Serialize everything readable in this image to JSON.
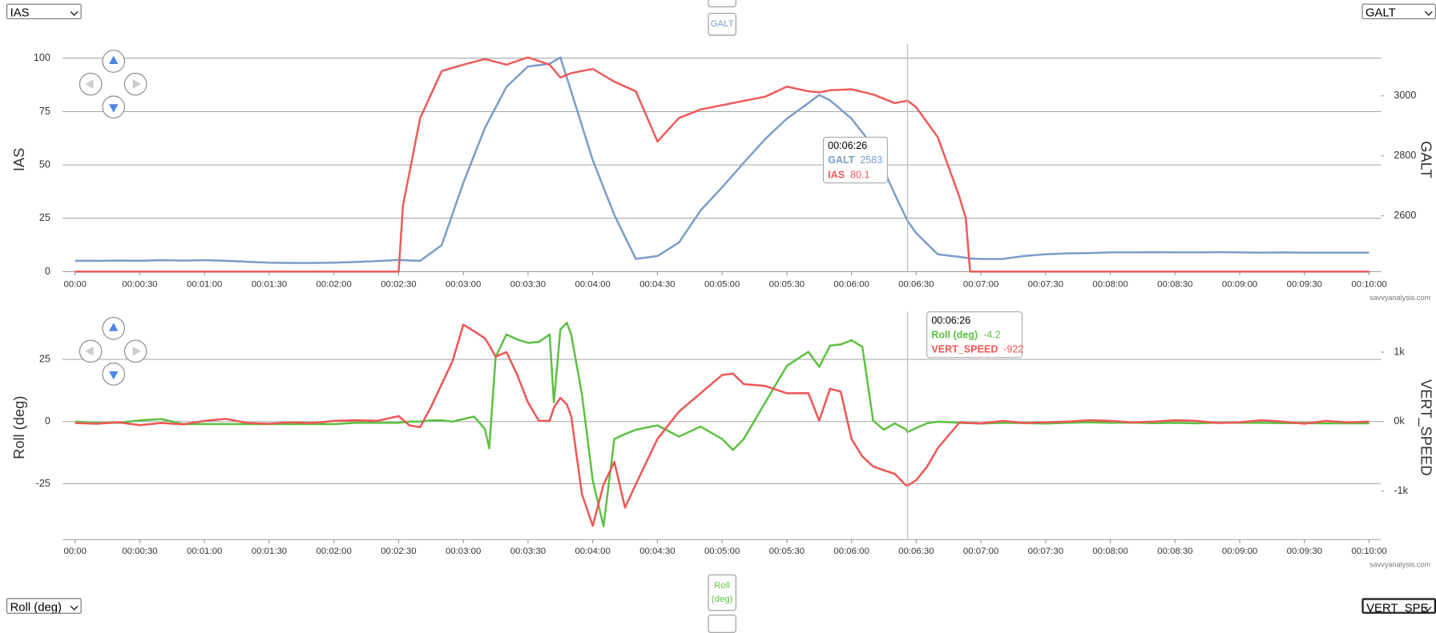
{
  "ui": {
    "select_top_left": "IAS",
    "select_top_right": "GALT",
    "select_bottom_left": "Roll (deg)",
    "select_bottom_right": "VERT_SPE",
    "button_top": "GALT",
    "button_bottom": "Roll (deg)"
  },
  "chart_data": [
    {
      "type": "line",
      "ylabel": "IAS",
      "y2label": "GALT",
      "credit": "savvyanalysis.com",
      "grid": true,
      "xlim": [
        0,
        600
      ],
      "ylim": [
        0,
        105
      ],
      "yticks": [
        0,
        25,
        50,
        75,
        100
      ],
      "y2lim": [
        2414,
        3161
      ],
      "y2ticks": [
        2600,
        2800,
        3000
      ],
      "xticks": [
        {
          "value": 0,
          "label": "00:00"
        },
        {
          "value": 30,
          "label": "00:00:30"
        },
        {
          "value": 60,
          "label": "00:01:00"
        },
        {
          "value": 90,
          "label": "00:01:30"
        },
        {
          "value": 120,
          "label": "00:02:00"
        },
        {
          "value": 150,
          "label": "00:02:30"
        },
        {
          "value": 180,
          "label": "00:03:00"
        },
        {
          "value": 210,
          "label": "00:03:30"
        },
        {
          "value": 240,
          "label": "00:04:00"
        },
        {
          "value": 270,
          "label": "00:04:30"
        },
        {
          "value": 300,
          "label": "00:05:00"
        },
        {
          "value": 330,
          "label": "00:05:30"
        },
        {
          "value": 360,
          "label": "00:06:00"
        },
        {
          "value": 390,
          "label": "00:06:30"
        },
        {
          "value": 420,
          "label": "00:07:00"
        },
        {
          "value": 450,
          "label": "00:07:30"
        },
        {
          "value": 480,
          "label": "00:08:00"
        },
        {
          "value": 510,
          "label": "00:08:30"
        },
        {
          "value": 540,
          "label": "00:09:00"
        },
        {
          "value": 570,
          "label": "00:09:30"
        },
        {
          "value": 600,
          "label": "00:10:00"
        }
      ],
      "x": [
        0,
        10,
        20,
        30,
        40,
        50,
        60,
        70,
        80,
        90,
        100,
        110,
        120,
        130,
        140,
        150,
        152,
        160,
        170,
        180,
        190,
        200,
        210,
        220,
        225,
        230,
        240,
        250,
        260,
        270,
        280,
        290,
        300,
        310,
        320,
        330,
        340,
        345,
        350,
        360,
        370,
        380,
        386,
        390,
        400,
        410,
        413,
        415,
        420,
        430,
        440,
        450,
        460,
        470,
        480,
        490,
        500,
        510,
        520,
        530,
        540,
        550,
        560,
        570,
        580,
        590,
        600
      ],
      "series": [
        {
          "name": "GALT",
          "color": "#7b9dc9",
          "axis": "y2",
          "values": [
            2450,
            2450,
            2451,
            2450,
            2452,
            2451,
            2452,
            2450,
            2447,
            2444,
            2443,
            2443,
            2444,
            2446,
            2449,
            2453,
            2452,
            2450,
            2502,
            2710,
            2893,
            3030,
            3098,
            3107,
            3128,
            3015,
            2786,
            2603,
            2456,
            2466,
            2511,
            2618,
            2695,
            2777,
            2856,
            2924,
            2976,
            3003,
            2985,
            2924,
            2832,
            2673,
            2583,
            2542,
            2472,
            2463,
            2460,
            2458,
            2456,
            2456,
            2466,
            2472,
            2475,
            2476,
            2478,
            2478,
            2479,
            2478,
            2478,
            2479,
            2478,
            2477,
            2478,
            2477,
            2477,
            2477,
            2477
          ]
        },
        {
          "name": "IAS",
          "color": "#ee5a5a",
          "values": [
            0,
            0,
            0,
            0,
            0,
            0,
            0,
            0,
            0,
            0,
            0,
            0,
            0,
            0,
            0,
            0,
            31,
            72,
            94,
            97,
            99.6,
            97,
            100.4,
            97,
            91,
            93,
            95,
            89,
            84.5,
            61,
            72,
            76,
            78,
            80,
            82,
            86.7,
            84.5,
            84,
            85,
            85.4,
            83,
            79,
            80.1,
            77,
            63,
            35,
            25,
            0,
            0,
            0,
            0,
            0,
            0,
            0,
            0,
            0,
            0,
            0,
            0,
            0,
            0,
            0,
            0,
            0,
            0,
            0,
            0
          ]
        }
      ],
      "tooltip": {
        "x": {
          "value": 386,
          "label": "00:06:26"
        },
        "values": [
          2583,
          80.1
        ]
      }
    },
    {
      "type": "line",
      "ylabel": "Roll (deg)",
      "y2label": "VERT_SPEED",
      "credit": "savvyanalysis.com",
      "grid": true,
      "xlim": [
        0,
        600
      ],
      "ylim": [
        -47.4,
        42.6
      ],
      "yticks": [
        -25,
        0,
        25
      ],
      "y2lim": [
        -1697,
        1526
      ],
      "y2ticks": [
        {
          "value": -1000,
          "label": "-1k"
        },
        {
          "value": 0,
          "label": "0k"
        },
        {
          "value": 1000,
          "label": "1k"
        }
      ],
      "xticks": [
        {
          "value": 0,
          "label": "00:00"
        },
        {
          "value": 30,
          "label": "00:00:30"
        },
        {
          "value": 60,
          "label": "00:01:00"
        },
        {
          "value": 90,
          "label": "00:01:30"
        },
        {
          "value": 120,
          "label": "00:02:00"
        },
        {
          "value": 150,
          "label": "00:02:30"
        },
        {
          "value": 180,
          "label": "00:03:00"
        },
        {
          "value": 210,
          "label": "00:03:30"
        },
        {
          "value": 240,
          "label": "00:04:00"
        },
        {
          "value": 270,
          "label": "00:04:30"
        },
        {
          "value": 300,
          "label": "00:05:00"
        },
        {
          "value": 330,
          "label": "00:05:30"
        },
        {
          "value": 360,
          "label": "00:06:00"
        },
        {
          "value": 390,
          "label": "00:06:30"
        },
        {
          "value": 420,
          "label": "00:07:00"
        },
        {
          "value": 450,
          "label": "00:07:30"
        },
        {
          "value": 480,
          "label": "00:08:00"
        },
        {
          "value": 510,
          "label": "00:08:30"
        },
        {
          "value": 540,
          "label": "00:09:00"
        },
        {
          "value": 570,
          "label": "00:09:30"
        },
        {
          "value": 600,
          "label": "00:10:00"
        }
      ],
      "x": [
        0,
        10,
        20,
        30,
        40,
        50,
        60,
        70,
        80,
        90,
        100,
        110,
        120,
        130,
        140,
        150,
        155,
        160,
        165,
        170,
        175,
        180,
        185,
        190,
        192,
        195,
        200,
        205,
        210,
        215,
        220,
        222,
        225,
        228,
        230,
        235,
        240,
        245,
        250,
        255,
        260,
        270,
        280,
        290,
        300,
        305,
        310,
        320,
        330,
        340,
        345,
        350,
        355,
        360,
        365,
        370,
        375,
        380,
        385,
        386,
        390,
        395,
        400,
        410,
        420,
        430,
        440,
        450,
        460,
        470,
        480,
        490,
        500,
        510,
        520,
        530,
        540,
        550,
        560,
        570,
        580,
        590,
        600
      ],
      "series": [
        {
          "name": "Roll (deg)",
          "color": "#5dc143",
          "values": [
            0,
            -0.5,
            -0.5,
            0.5,
            1,
            -1,
            -1,
            -1,
            -1,
            -1,
            -1,
            -1,
            -1,
            -0.5,
            -0.5,
            -0.5,
            0,
            0,
            0.5,
            0.5,
            0,
            1,
            2,
            -3,
            -10.7,
            26,
            35,
            33,
            31.6,
            32,
            35,
            7.7,
            37,
            39.7,
            35,
            11,
            -23.5,
            -42,
            -7,
            -5,
            -3.3,
            -1.5,
            -6,
            -2,
            -7,
            -11.4,
            -7,
            7.7,
            22.4,
            28,
            22,
            30.5,
            31,
            32.7,
            30,
            0.4,
            -3.3,
            -0.7,
            -3,
            -4.2,
            -2.6,
            -0.7,
            0,
            -0.5,
            -0.8,
            -0.5,
            -0.6,
            -0.8,
            -0.5,
            -0.3,
            -0.5,
            -0.4,
            -0.6,
            -0.5,
            -0.7,
            -0.4,
            -0.5,
            -0.5,
            -0.6,
            -0.6,
            -0.7,
            -0.7,
            -0.7
          ]
        },
        {
          "name": "VERT_SPEED",
          "color": "#ef5656",
          "axis": "y2",
          "values": [
            -20,
            -30,
            -10,
            -50,
            -20,
            -40,
            10,
            40,
            -20,
            -30,
            -10,
            -20,
            10,
            20,
            10,
            79,
            -53,
            -79,
            210,
            540,
            868,
            1395,
            1300,
            1197,
            1100,
            934,
            1000,
            671,
            276,
            13,
            10,
            200,
            342,
            250,
            79,
            -1040,
            -1500,
            -908,
            -579,
            -1237,
            -900,
            -250,
            145,
            408,
            671,
            690,
            540,
            513,
            408,
            410,
            13,
            474,
            430,
            -250,
            -500,
            -645,
            -700,
            -750,
            -908,
            -922,
            -842,
            -650,
            -382,
            -13,
            -26,
            10,
            -20,
            -10,
            0,
            20,
            10,
            -10,
            0,
            20,
            10,
            -20,
            -10,
            20,
            0,
            -30,
            10,
            -10,
            0
          ]
        }
      ],
      "tooltip": {
        "x": {
          "value": 386,
          "label": "00:06:26"
        },
        "values": [
          -4.2,
          -922
        ]
      }
    }
  ]
}
